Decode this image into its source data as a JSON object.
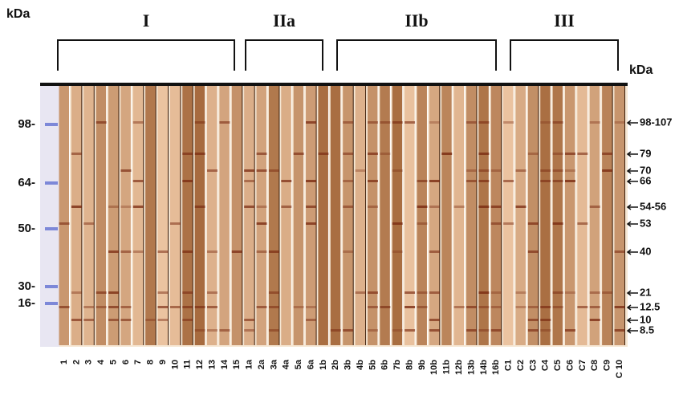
{
  "left_header": "kDa",
  "right_header": "kDa",
  "groups": [
    {
      "label": "I"
    },
    {
      "label": "IIa"
    },
    {
      "label": "IIb"
    },
    {
      "label": "III"
    }
  ],
  "left_markers": [
    "98-",
    "64-",
    "50-",
    "30-",
    "16-"
  ],
  "right_markers": [
    "98-107",
    "79",
    "70",
    "66",
    "54-56",
    "53",
    "40",
    "21",
    "12.5",
    "10",
    "8.5"
  ],
  "lanes": [
    "1",
    "2",
    "3",
    "4",
    "5",
    "6",
    "7",
    "8",
    "9",
    "10",
    "11",
    "12",
    "13",
    "14",
    "15",
    "1a",
    "2a",
    "3a",
    "4a",
    "5a",
    "6a",
    "1b",
    "2b",
    "3b",
    "4b",
    "5b",
    "6b",
    "7b",
    "8b",
    "9b",
    "10b",
    "11b",
    "12b",
    "13b",
    "14b",
    "16b",
    "C1",
    "C2",
    "C3",
    "C4",
    "C5",
    "C6",
    "C7",
    "C8",
    "C9",
    "C 10"
  ]
}
